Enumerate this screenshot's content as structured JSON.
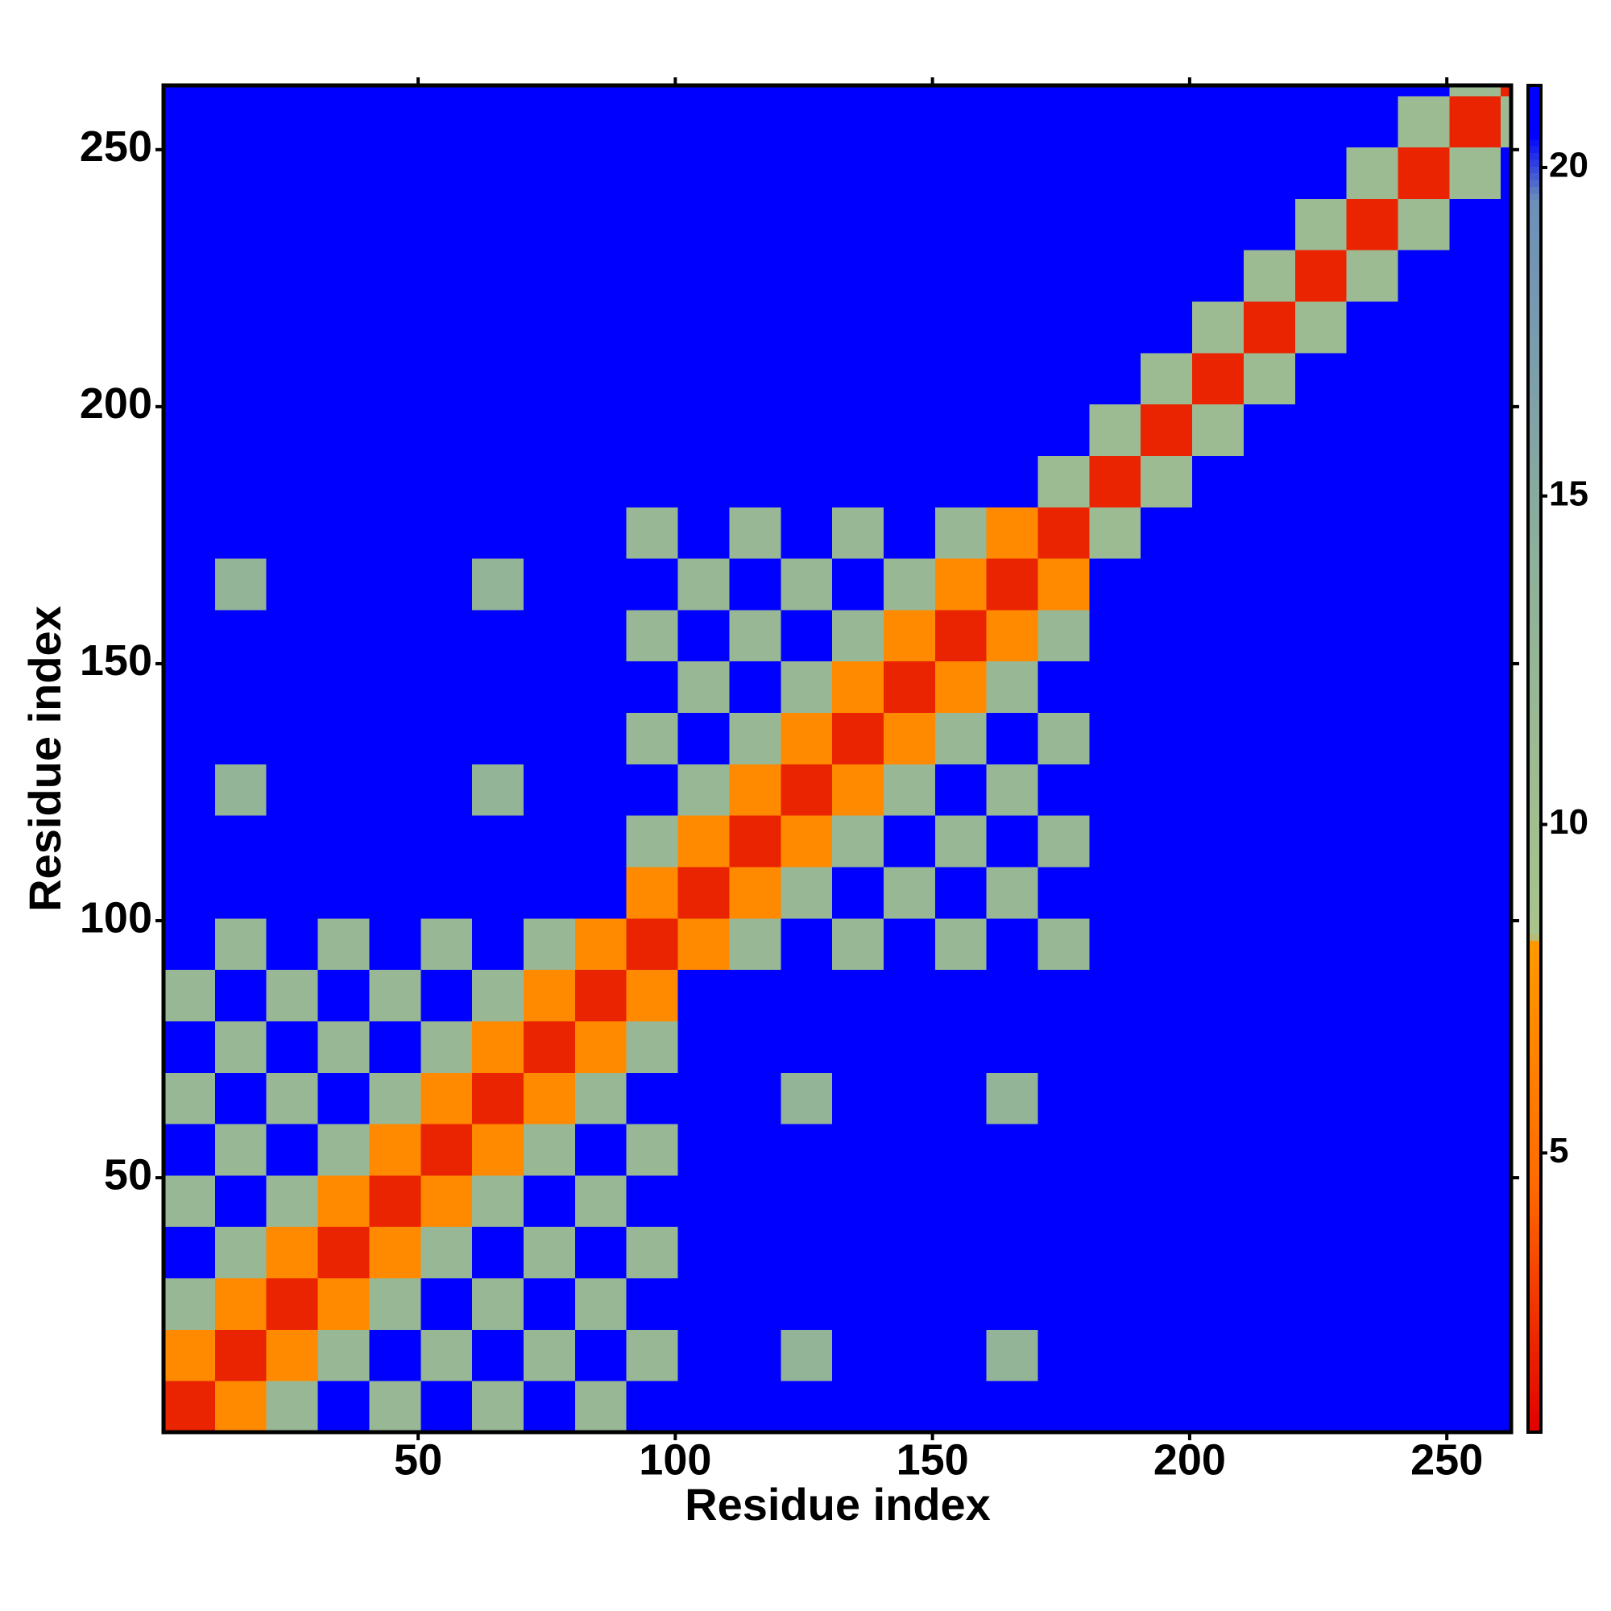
{
  "chart_data": {
    "type": "heatmap",
    "xlabel": "Residue index",
    "ylabel": "Residue index",
    "xlim": [
      0.5,
      262.5
    ],
    "ylim": [
      0.5,
      262.5
    ],
    "xticks": [
      50,
      100,
      150,
      200,
      250
    ],
    "yticks": [
      50,
      100,
      150,
      200,
      250
    ],
    "zlim": [
      0.75,
      21.25
    ],
    "zticks": [
      5,
      10,
      15,
      20
    ],
    "colorscale": [
      [
        0.75,
        "#e00000"
      ],
      [
        4.5,
        "#ff6a00"
      ],
      [
        8.2,
        "#ff9900"
      ],
      [
        8.3,
        "#a9c48c"
      ],
      [
        14,
        "#8fb09a"
      ],
      [
        19.5,
        "#6d8fb8"
      ],
      [
        20.5,
        "#0000ff"
      ],
      [
        21.25,
        "#0000ff"
      ]
    ],
    "xbins": [
      0.5,
      10.5,
      20.5,
      30.5,
      40.5,
      50.5,
      60.5,
      70.5,
      80.5,
      90.5,
      100.5,
      110.5,
      120.5,
      130.5,
      140.5,
      150.5,
      160.5,
      170.5,
      180.5,
      190.5,
      200.5,
      210.5,
      220.5,
      230.5,
      240.5,
      250.5,
      260.5,
      262.5
    ],
    "ybins": [
      0.5,
      10.5,
      20.5,
      30.5,
      40.5,
      50.5,
      60.5,
      70.5,
      80.5,
      90.5,
      100.5,
      110.5,
      120.5,
      130.5,
      140.5,
      150.5,
      160.5,
      170.5,
      180.5,
      190.5,
      200.5,
      210.5,
      220.5,
      230.5,
      240.5,
      250.5,
      260.5,
      262.5
    ],
    "z": [
      [
        2,
        7,
        12,
        21,
        12,
        21,
        12,
        21,
        12,
        21,
        21,
        21,
        21,
        21,
        21,
        21,
        21,
        21,
        21,
        21,
        21,
        21,
        21,
        21,
        21,
        21,
        21
      ],
      [
        7,
        2,
        7,
        12,
        21,
        12,
        21,
        12,
        21,
        12,
        21,
        21,
        13,
        21,
        21,
        21,
        13,
        21,
        21,
        21,
        21,
        21,
        21,
        21,
        21,
        21,
        21
      ],
      [
        12,
        7,
        2,
        7,
        12,
        21,
        12,
        21,
        12,
        21,
        21,
        21,
        21,
        21,
        21,
        21,
        21,
        21,
        21,
        21,
        21,
        21,
        21,
        21,
        21,
        21,
        21
      ],
      [
        21,
        12,
        7,
        2,
        7,
        12,
        21,
        12,
        21,
        12,
        21,
        21,
        21,
        21,
        21,
        21,
        21,
        21,
        21,
        21,
        21,
        21,
        21,
        21,
        21,
        21,
        21
      ],
      [
        12,
        21,
        12,
        7,
        2,
        7,
        12,
        21,
        12,
        21,
        21,
        21,
        21,
        21,
        21,
        21,
        21,
        21,
        21,
        21,
        21,
        21,
        21,
        21,
        21,
        21,
        21
      ],
      [
        21,
        12,
        21,
        12,
        7,
        2,
        7,
        12,
        21,
        12,
        21,
        21,
        21,
        21,
        21,
        21,
        21,
        21,
        21,
        21,
        21,
        21,
        21,
        21,
        21,
        21,
        21
      ],
      [
        12,
        21,
        12,
        21,
        12,
        7,
        2,
        7,
        12,
        21,
        21,
        21,
        13,
        21,
        21,
        21,
        13,
        21,
        21,
        21,
        21,
        21,
        21,
        21,
        21,
        21,
        21
      ],
      [
        21,
        12,
        21,
        12,
        21,
        12,
        7,
        2,
        7,
        12,
        21,
        21,
        21,
        21,
        21,
        21,
        21,
        21,
        21,
        21,
        21,
        21,
        21,
        21,
        21,
        21,
        21
      ],
      [
        12,
        21,
        12,
        21,
        12,
        21,
        12,
        7,
        2,
        7,
        21,
        21,
        21,
        21,
        21,
        21,
        21,
        21,
        21,
        21,
        21,
        21,
        21,
        21,
        21,
        21,
        21
      ],
      [
        21,
        12,
        21,
        12,
        21,
        12,
        21,
        12,
        7,
        2,
        7,
        12,
        21,
        12,
        21,
        12,
        21,
        12,
        21,
        21,
        21,
        21,
        21,
        21,
        21,
        21,
        21
      ],
      [
        21,
        21,
        21,
        21,
        21,
        21,
        21,
        21,
        21,
        7,
        2,
        7,
        12,
        21,
        12,
        21,
        12,
        21,
        21,
        21,
        21,
        21,
        21,
        21,
        21,
        21,
        21
      ],
      [
        21,
        21,
        21,
        21,
        21,
        21,
        21,
        21,
        21,
        12,
        7,
        2,
        7,
        12,
        21,
        12,
        21,
        12,
        21,
        21,
        21,
        21,
        21,
        21,
        21,
        21,
        21
      ],
      [
        21,
        13,
        21,
        21,
        21,
        21,
        13,
        21,
        21,
        21,
        12,
        7,
        2,
        7,
        12,
        21,
        12,
        21,
        21,
        21,
        21,
        21,
        21,
        21,
        21,
        21,
        21
      ],
      [
        21,
        21,
        21,
        21,
        21,
        21,
        21,
        21,
        21,
        12,
        21,
        12,
        7,
        2,
        7,
        12,
        21,
        12,
        21,
        21,
        21,
        21,
        21,
        21,
        21,
        21,
        21
      ],
      [
        21,
        21,
        21,
        21,
        21,
        21,
        21,
        21,
        21,
        21,
        12,
        21,
        12,
        7,
        2,
        7,
        12,
        21,
        21,
        21,
        21,
        21,
        21,
        21,
        21,
        21,
        21
      ],
      [
        21,
        21,
        21,
        21,
        21,
        21,
        21,
        21,
        21,
        12,
        21,
        12,
        21,
        12,
        7,
        2,
        7,
        12,
        21,
        21,
        21,
        21,
        21,
        21,
        21,
        21,
        21
      ],
      [
        21,
        13,
        21,
        21,
        21,
        21,
        13,
        21,
        21,
        21,
        12,
        21,
        12,
        21,
        12,
        7,
        2,
        7,
        21,
        21,
        21,
        21,
        21,
        21,
        21,
        21,
        21
      ],
      [
        21,
        21,
        21,
        21,
        21,
        21,
        21,
        21,
        21,
        12,
        21,
        12,
        21,
        12,
        21,
        12,
        7,
        2,
        11,
        21,
        21,
        21,
        21,
        21,
        21,
        21,
        21
      ],
      [
        21,
        21,
        21,
        21,
        21,
        21,
        21,
        21,
        21,
        21,
        21,
        21,
        21,
        21,
        21,
        21,
        21,
        11,
        2,
        11,
        21,
        21,
        21,
        21,
        21,
        21,
        21
      ],
      [
        21,
        21,
        21,
        21,
        21,
        21,
        21,
        21,
        21,
        21,
        21,
        21,
        21,
        21,
        21,
        21,
        21,
        21,
        11,
        2,
        11,
        21,
        21,
        21,
        21,
        21,
        21
      ],
      [
        21,
        21,
        21,
        21,
        21,
        21,
        21,
        21,
        21,
        21,
        21,
        21,
        21,
        21,
        21,
        21,
        21,
        21,
        21,
        11,
        2,
        11,
        21,
        21,
        21,
        21,
        21
      ],
      [
        21,
        21,
        21,
        21,
        21,
        21,
        21,
        21,
        21,
        21,
        21,
        21,
        21,
        21,
        21,
        21,
        21,
        21,
        21,
        21,
        11,
        2,
        11,
        21,
        21,
        21,
        21
      ],
      [
        21,
        21,
        21,
        21,
        21,
        21,
        21,
        21,
        21,
        21,
        21,
        21,
        21,
        21,
        21,
        21,
        21,
        21,
        21,
        21,
        21,
        11,
        2,
        11,
        21,
        21,
        21
      ],
      [
        21,
        21,
        21,
        21,
        21,
        21,
        21,
        21,
        21,
        21,
        21,
        21,
        21,
        21,
        21,
        21,
        21,
        21,
        21,
        21,
        21,
        21,
        11,
        2,
        11,
        21,
        21
      ],
      [
        21,
        21,
        21,
        21,
        21,
        21,
        21,
        21,
        21,
        21,
        21,
        21,
        21,
        21,
        21,
        21,
        21,
        21,
        21,
        21,
        21,
        21,
        21,
        11,
        2,
        11,
        21
      ],
      [
        21,
        21,
        21,
        21,
        21,
        21,
        21,
        21,
        21,
        21,
        21,
        21,
        21,
        21,
        21,
        21,
        21,
        21,
        21,
        21,
        21,
        21,
        21,
        21,
        11,
        2,
        11
      ],
      [
        21,
        21,
        21,
        21,
        21,
        21,
        21,
        21,
        21,
        21,
        21,
        21,
        21,
        21,
        21,
        21,
        21,
        21,
        21,
        21,
        21,
        21,
        21,
        21,
        21,
        11,
        2
      ]
    ]
  }
}
